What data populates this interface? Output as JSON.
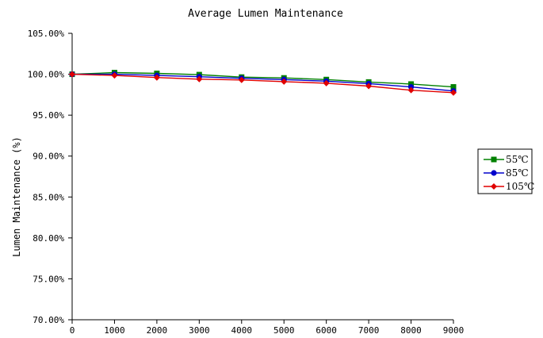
{
  "chart_data": {
    "type": "line",
    "title": "Average Lumen Maintenance",
    "xlabel": "",
    "ylabel": "Lumen Maintenance (%)",
    "x": [
      0,
      1000,
      2000,
      3000,
      4000,
      5000,
      6000,
      7000,
      8000,
      9000
    ],
    "xlim": [
      0,
      9000
    ],
    "ylim": [
      70,
      105
    ],
    "x_ticks": [
      "0",
      "1000",
      "2000",
      "3000",
      "4000",
      "5000",
      "6000",
      "7000",
      "8000",
      "9000"
    ],
    "y_ticks": [
      {
        "value": 70,
        "label": "70.00%"
      },
      {
        "value": 75,
        "label": "75.00%"
      },
      {
        "value": 80,
        "label": "80.00%"
      },
      {
        "value": 85,
        "label": "85.00%"
      },
      {
        "value": 90,
        "label": "90.00%"
      },
      {
        "value": 95,
        "label": "95.00%"
      },
      {
        "value": 100,
        "label": "100.00%"
      },
      {
        "value": 105,
        "label": "105.00%"
      }
    ],
    "grid": false,
    "legend_position": "right",
    "series": [
      {
        "name": "55℃",
        "color": "#008000",
        "marker": "square",
        "values": [
          100.0,
          100.2,
          100.1,
          99.95,
          99.65,
          99.55,
          99.35,
          99.05,
          98.8,
          98.45
        ]
      },
      {
        "name": "85℃",
        "color": "#0000cc",
        "marker": "circle",
        "values": [
          100.0,
          100.0,
          99.85,
          99.7,
          99.5,
          99.35,
          99.15,
          98.85,
          98.45,
          97.95
        ]
      },
      {
        "name": "105℃",
        "color": "#e00000",
        "marker": "diamond",
        "values": [
          100.0,
          99.85,
          99.6,
          99.4,
          99.3,
          99.1,
          98.9,
          98.55,
          98.05,
          97.75
        ]
      }
    ]
  }
}
